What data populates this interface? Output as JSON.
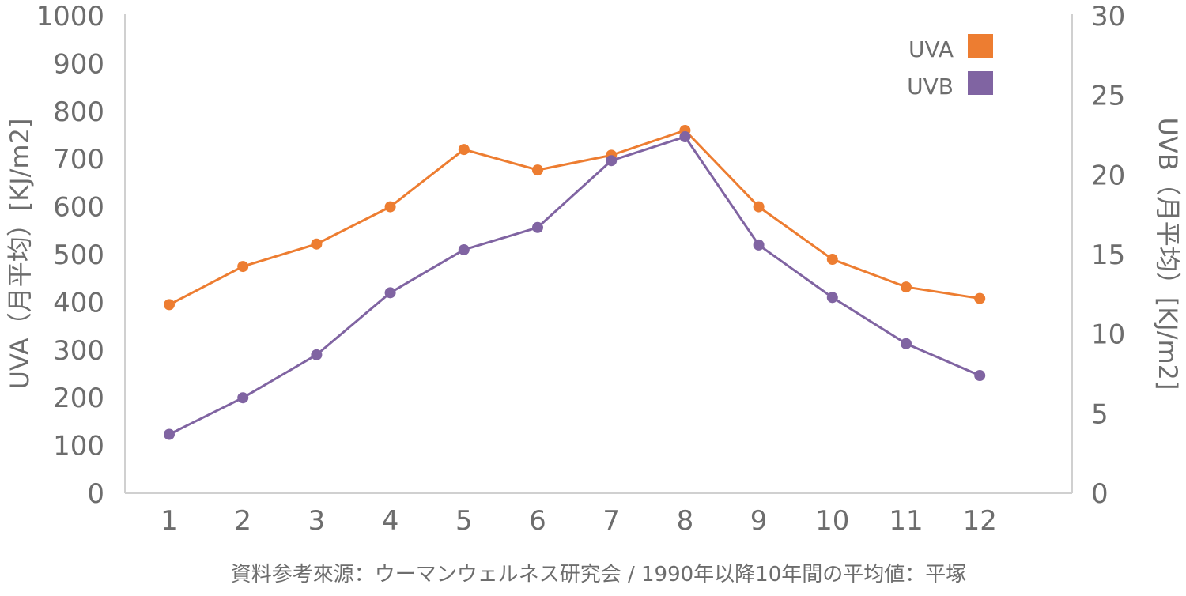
{
  "chart_data": {
    "type": "line",
    "categories": [
      "1",
      "2",
      "3",
      "4",
      "5",
      "6",
      "7",
      "8",
      "9",
      "10",
      "11",
      "12"
    ],
    "series": [
      {
        "name": "UVA",
        "axis": "left",
        "color": "#ed7d31",
        "values": [
          395,
          475,
          522,
          600,
          720,
          677,
          708,
          760,
          600,
          490,
          432,
          408
        ]
      },
      {
        "name": "UVB",
        "axis": "right",
        "color": "#8064a2",
        "values": [
          3.7,
          6.0,
          8.7,
          12.6,
          15.3,
          16.7,
          20.9,
          22.4,
          15.6,
          12.3,
          9.4,
          7.4
        ]
      }
    ],
    "y_left": {
      "label": "UVA（月平均）[KJ/m2]",
      "min": 0,
      "max": 1000,
      "step": 100,
      "ticks": [
        "0",
        "100",
        "200",
        "300",
        "400",
        "500",
        "600",
        "700",
        "800",
        "900",
        "1000"
      ]
    },
    "y_right": {
      "label": "UVB（月平均）[KJ/m2]",
      "min": 0,
      "max": 30,
      "step": 5,
      "ticks": [
        "0",
        "5",
        "10",
        "15",
        "20",
        "25",
        "30"
      ]
    },
    "grid": false,
    "legend": "top-right",
    "source": "資料参考來源：ウーマンウェルネス研究会 / 1990年以降10年間の平均値：平塚"
  }
}
